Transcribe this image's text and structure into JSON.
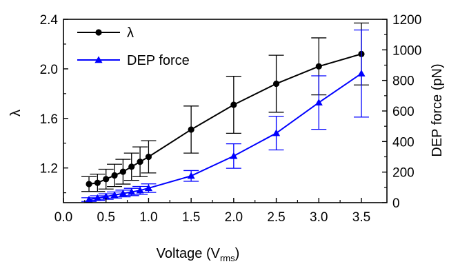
{
  "chart_data": {
    "type": "line",
    "xlabel": "Voltage (V",
    "xlabel_sub": "rms",
    "xlabel_close": ")",
    "ylabel": "λ",
    "y2label": "DEP force (pN)",
    "xlim": [
      0.0,
      3.8
    ],
    "ylim": [
      0.92,
      2.4
    ],
    "y2lim": [
      0,
      1200
    ],
    "xticks": [
      "0.0",
      "0.5",
      "1.0",
      "1.5",
      "2.0",
      "2.5",
      "3.0",
      "3.5"
    ],
    "yticks": [
      "1.2",
      "1.6",
      "2.0",
      "2.4"
    ],
    "y2ticks": [
      "0",
      "200",
      "400",
      "600",
      "800",
      "1000",
      "1200"
    ],
    "grid": false,
    "legend_position": "top-left",
    "series": [
      {
        "name": "λ",
        "axis": "left",
        "color": "#000000",
        "marker": "circle",
        "x": [
          0.3,
          0.4,
          0.5,
          0.6,
          0.7,
          0.8,
          0.9,
          1.0,
          1.5,
          2.0,
          2.5,
          3.0,
          3.5
        ],
        "y": [
          1.07,
          1.08,
          1.11,
          1.14,
          1.17,
          1.21,
          1.25,
          1.29,
          1.51,
          1.71,
          1.88,
          2.02,
          2.12
        ],
        "err": [
          0.06,
          0.07,
          0.08,
          0.09,
          0.1,
          0.11,
          0.12,
          0.13,
          0.19,
          0.23,
          0.23,
          0.23,
          0.25
        ]
      },
      {
        "name": "DEP force",
        "axis": "right",
        "color": "#0000ff",
        "marker": "triangle",
        "x": [
          0.3,
          0.4,
          0.5,
          0.6,
          0.7,
          0.8,
          0.9,
          1.0,
          1.5,
          2.0,
          2.5,
          3.0,
          3.5
        ],
        "y": [
          20,
          30,
          40,
          50,
          60,
          70,
          80,
          95,
          175,
          305,
          455,
          655,
          845
        ],
        "err": [
          12,
          15,
          18,
          20,
          22,
          24,
          26,
          28,
          35,
          80,
          110,
          175,
          285
        ]
      }
    ]
  }
}
